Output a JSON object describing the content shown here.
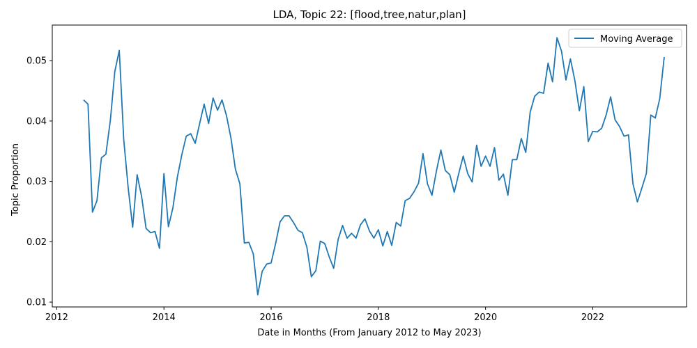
{
  "chart_data": {
    "type": "line",
    "title": "LDA, Topic 22: [flood,tree,natur,plan]",
    "xlabel": "Date in Months (From January 2012 to May 2023)",
    "ylabel": "Topic Proportion",
    "x_ticks": [
      "2012",
      "2014",
      "2016",
      "2018",
      "2020",
      "2022"
    ],
    "y_ticks": [
      "0.01",
      "0.02",
      "0.03",
      "0.04",
      "0.05"
    ],
    "xlim": [
      "2011-12",
      "2023-10"
    ],
    "ylim": [
      0.0092,
      0.0559
    ],
    "grid": false,
    "legend_position": "top-right",
    "series": [
      {
        "name": "Moving Average",
        "color": "#1f77b4",
        "x": [
          "2012-07",
          "2012-08",
          "2012-09",
          "2012-10",
          "2012-11",
          "2012-12",
          "2013-01",
          "2013-02",
          "2013-03",
          "2013-04",
          "2013-05",
          "2013-06",
          "2013-07",
          "2013-08",
          "2013-09",
          "2013-10",
          "2013-11",
          "2013-12",
          "2014-01",
          "2014-02",
          "2014-03",
          "2014-04",
          "2014-05",
          "2014-06",
          "2014-07",
          "2014-08",
          "2014-09",
          "2014-10",
          "2014-11",
          "2014-12",
          "2015-01",
          "2015-02",
          "2015-03",
          "2015-04",
          "2015-05",
          "2015-06",
          "2015-07",
          "2015-08",
          "2015-09",
          "2015-10",
          "2015-11",
          "2015-12",
          "2016-01",
          "2016-02",
          "2016-03",
          "2016-04",
          "2016-05",
          "2016-06",
          "2016-07",
          "2016-08",
          "2016-09",
          "2016-10",
          "2016-11",
          "2016-12",
          "2017-01",
          "2017-02",
          "2017-03",
          "2017-04",
          "2017-05",
          "2017-06",
          "2017-07",
          "2017-08",
          "2017-09",
          "2017-10",
          "2017-11",
          "2017-12",
          "2018-01",
          "2018-02",
          "2018-03",
          "2018-04",
          "2018-05",
          "2018-06",
          "2018-07",
          "2018-08",
          "2018-09",
          "2018-10",
          "2018-11",
          "2018-12",
          "2019-01",
          "2019-02",
          "2019-03",
          "2019-04",
          "2019-05",
          "2019-06",
          "2019-07",
          "2019-08",
          "2019-09",
          "2019-10",
          "2019-11",
          "2019-12",
          "2020-01",
          "2020-02",
          "2020-03",
          "2020-04",
          "2020-05",
          "2020-06",
          "2020-07",
          "2020-08",
          "2020-09",
          "2020-10",
          "2020-11",
          "2020-12",
          "2021-01",
          "2021-02",
          "2021-03",
          "2021-04",
          "2021-05",
          "2021-06",
          "2021-07",
          "2021-08",
          "2021-09",
          "2021-10",
          "2021-11",
          "2021-12",
          "2022-01",
          "2022-02",
          "2022-03",
          "2022-04",
          "2022-05",
          "2022-06",
          "2022-07",
          "2022-08",
          "2022-09",
          "2022-10",
          "2022-11",
          "2022-12",
          "2023-01",
          "2023-02",
          "2023-03",
          "2023-04",
          "2023-05"
        ],
        "values": [
          0.0435,
          0.0428,
          0.0249,
          0.0268,
          0.0339,
          0.0345,
          0.0401,
          0.0482,
          0.0517,
          0.0369,
          0.0289,
          0.0224,
          0.0311,
          0.0275,
          0.0222,
          0.0215,
          0.0217,
          0.0189,
          0.0313,
          0.0225,
          0.0256,
          0.0307,
          0.0344,
          0.0375,
          0.0379,
          0.0363,
          0.0396,
          0.0428,
          0.0396,
          0.0438,
          0.0418,
          0.0435,
          0.0409,
          0.0372,
          0.032,
          0.0296,
          0.0198,
          0.0199,
          0.018,
          0.0112,
          0.0151,
          0.0163,
          0.0165,
          0.0197,
          0.0233,
          0.0243,
          0.0243,
          0.0232,
          0.0219,
          0.0215,
          0.0191,
          0.0142,
          0.0152,
          0.0201,
          0.0197,
          0.0175,
          0.0156,
          0.0204,
          0.0227,
          0.0206,
          0.0214,
          0.0206,
          0.0228,
          0.0238,
          0.0218,
          0.0206,
          0.022,
          0.0193,
          0.0217,
          0.0194,
          0.0232,
          0.0226,
          0.0268,
          0.0272,
          0.0283,
          0.0297,
          0.0346,
          0.0296,
          0.0277,
          0.0317,
          0.0352,
          0.0318,
          0.0311,
          0.0282,
          0.0313,
          0.0342,
          0.0313,
          0.0299,
          0.036,
          0.0325,
          0.0342,
          0.0325,
          0.0356,
          0.0302,
          0.0312,
          0.0277,
          0.0336,
          0.0336,
          0.0371,
          0.0348,
          0.0415,
          0.0441,
          0.0448,
          0.0446,
          0.0496,
          0.0465,
          0.0538,
          0.0516,
          0.0468,
          0.0503,
          0.0467,
          0.0417,
          0.0457,
          0.0366,
          0.0383,
          0.0382,
          0.0388,
          0.041,
          0.044,
          0.0402,
          0.0391,
          0.0375,
          0.0377,
          0.0296,
          0.0266,
          0.0289,
          0.0313,
          0.041,
          0.0405,
          0.0437,
          0.0506
        ]
      }
    ]
  }
}
